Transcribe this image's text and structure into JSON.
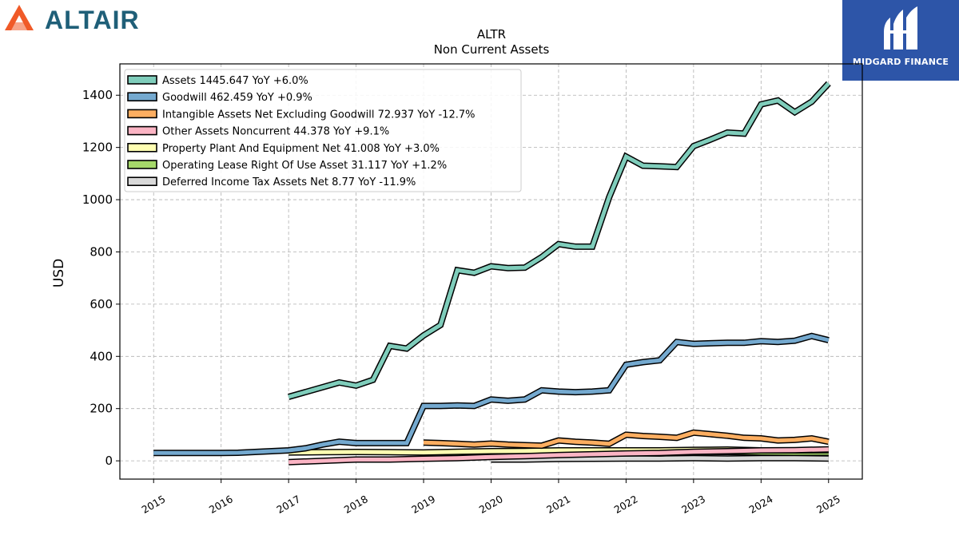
{
  "branding": {
    "left_logo_text": "ALTAIR",
    "right_logo_text": "MIDGARD FINANCE"
  },
  "chart_data": {
    "type": "line",
    "title": "ALTR",
    "subtitle": "Non Current  Assets",
    "ylabel": "USD",
    "xlabel": "",
    "xlim": [
      2014.5,
      2025.5
    ],
    "ylim": [
      -70,
      1520
    ],
    "x_ticks": [
      "2015",
      "2016",
      "2017",
      "2018",
      "2019",
      "2020",
      "2021",
      "2022",
      "2023",
      "2024",
      "2025"
    ],
    "y_ticks": [
      0,
      200,
      400,
      600,
      800,
      1000,
      1200,
      1400
    ],
    "grid": true,
    "legend_position": "top-left",
    "series": [
      {
        "name": "Assets  1445.647 YoY +6.0%",
        "color": "#7fcdbb",
        "points": [
          [
            2017.0,
            245
          ],
          [
            2017.75,
            300
          ],
          [
            2018.0,
            288
          ],
          [
            2018.25,
            310
          ],
          [
            2018.5,
            440
          ],
          [
            2018.75,
            430
          ],
          [
            2019.0,
            480
          ],
          [
            2019.25,
            520
          ],
          [
            2019.5,
            730
          ],
          [
            2019.75,
            720
          ],
          [
            2020.0,
            745
          ],
          [
            2020.25,
            738
          ],
          [
            2020.5,
            740
          ],
          [
            2020.75,
            780
          ],
          [
            2021.0,
            830
          ],
          [
            2021.25,
            820
          ],
          [
            2021.5,
            820
          ],
          [
            2021.75,
            1010
          ],
          [
            2022.0,
            1165
          ],
          [
            2022.25,
            1130
          ],
          [
            2022.5,
            1128
          ],
          [
            2022.75,
            1125
          ],
          [
            2023.0,
            1205
          ],
          [
            2023.25,
            1230
          ],
          [
            2023.5,
            1257
          ],
          [
            2023.75,
            1253
          ],
          [
            2024.0,
            1365
          ],
          [
            2024.25,
            1380
          ],
          [
            2024.5,
            1335
          ],
          [
            2024.75,
            1375
          ],
          [
            2025.0,
            1445
          ]
        ]
      },
      {
        "name": "Goodwill  462.459 YoY +0.9%",
        "color": "#74a9cf",
        "points": [
          [
            2015.0,
            30
          ],
          [
            2015.25,
            30
          ],
          [
            2015.5,
            30
          ],
          [
            2015.75,
            30
          ],
          [
            2016.0,
            30
          ],
          [
            2016.25,
            31
          ],
          [
            2016.5,
            34
          ],
          [
            2016.75,
            37
          ],
          [
            2017.0,
            40
          ],
          [
            2017.25,
            48
          ],
          [
            2017.5,
            62
          ],
          [
            2017.75,
            73
          ],
          [
            2018.0,
            68
          ],
          [
            2018.25,
            68
          ],
          [
            2018.5,
            68
          ],
          [
            2018.75,
            68
          ],
          [
            2019.0,
            210
          ],
          [
            2019.25,
            210
          ],
          [
            2019.5,
            212
          ],
          [
            2019.75,
            210
          ],
          [
            2020.0,
            235
          ],
          [
            2020.25,
            230
          ],
          [
            2020.5,
            235
          ],
          [
            2020.75,
            270
          ],
          [
            2021.0,
            265
          ],
          [
            2021.25,
            263
          ],
          [
            2021.5,
            265
          ],
          [
            2021.75,
            270
          ],
          [
            2022.0,
            368
          ],
          [
            2022.25,
            378
          ],
          [
            2022.5,
            385
          ],
          [
            2022.75,
            455
          ],
          [
            2023.0,
            448
          ],
          [
            2023.25,
            450
          ],
          [
            2023.5,
            452
          ],
          [
            2023.75,
            452
          ],
          [
            2024.0,
            458
          ],
          [
            2024.25,
            455
          ],
          [
            2024.5,
            460
          ],
          [
            2024.75,
            478
          ],
          [
            2025.0,
            462
          ]
        ]
      },
      {
        "name": "Intangible Assets Net Excluding Goodwill  72.937 YoY -12.7%",
        "color": "#fdae61",
        "points": [
          [
            2019.0,
            70
          ],
          [
            2019.25,
            68
          ],
          [
            2019.5,
            65
          ],
          [
            2019.75,
            62
          ],
          [
            2020.0,
            66
          ],
          [
            2020.25,
            62
          ],
          [
            2020.5,
            60
          ],
          [
            2020.75,
            58
          ],
          [
            2021.0,
            78
          ],
          [
            2021.25,
            73
          ],
          [
            2021.5,
            70
          ],
          [
            2021.75,
            65
          ],
          [
            2022.0,
            100
          ],
          [
            2022.25,
            95
          ],
          [
            2022.5,
            92
          ],
          [
            2022.75,
            88
          ],
          [
            2023.0,
            108
          ],
          [
            2023.25,
            102
          ],
          [
            2023.5,
            96
          ],
          [
            2023.75,
            88
          ],
          [
            2024.0,
            86
          ],
          [
            2024.25,
            78
          ],
          [
            2024.5,
            80
          ],
          [
            2024.75,
            86
          ],
          [
            2025.0,
            73
          ]
        ]
      },
      {
        "name": "Other Assets Noncurrent  44.378 YoY +9.1%",
        "color": "#fbb4c4",
        "points": [
          [
            2017.0,
            -5
          ],
          [
            2017.5,
            0
          ],
          [
            2018.0,
            5
          ],
          [
            2018.5,
            5
          ],
          [
            2019.0,
            8
          ],
          [
            2019.5,
            10
          ],
          [
            2020.0,
            15
          ],
          [
            2020.5,
            18
          ],
          [
            2021.0,
            22
          ],
          [
            2021.5,
            25
          ],
          [
            2022.0,
            28
          ],
          [
            2022.5,
            30
          ],
          [
            2023.0,
            35
          ],
          [
            2023.5,
            37
          ],
          [
            2024.0,
            40
          ],
          [
            2024.5,
            41
          ],
          [
            2025.0,
            44
          ]
        ]
      },
      {
        "name": "Property Plant And Equipment Net  41.008 YoY +3.0%",
        "color": "#ffffb2",
        "points": [
          [
            2017.0,
            32
          ],
          [
            2017.5,
            33
          ],
          [
            2018.0,
            34
          ],
          [
            2018.5,
            33
          ],
          [
            2019.0,
            32
          ],
          [
            2019.5,
            35
          ],
          [
            2020.0,
            37
          ],
          [
            2020.5,
            38
          ],
          [
            2021.0,
            40
          ],
          [
            2021.5,
            40
          ],
          [
            2022.0,
            40
          ],
          [
            2022.5,
            40
          ],
          [
            2023.0,
            42
          ],
          [
            2023.5,
            43
          ],
          [
            2024.0,
            40
          ],
          [
            2024.5,
            40
          ],
          [
            2025.0,
            41
          ]
        ]
      },
      {
        "name": "Operating Lease Right Of Use Asset  31.117 YoY +1.2%",
        "color": "#a6d96a",
        "points": [
          [
            2019.25,
            30
          ],
          [
            2019.5,
            29
          ],
          [
            2020.0,
            28
          ],
          [
            2020.5,
            27
          ],
          [
            2021.0,
            33
          ],
          [
            2021.5,
            32
          ],
          [
            2022.0,
            30
          ],
          [
            2022.5,
            28
          ],
          [
            2023.0,
            35
          ],
          [
            2023.5,
            34
          ],
          [
            2024.0,
            32
          ],
          [
            2024.5,
            31
          ],
          [
            2025.0,
            31
          ]
        ]
      },
      {
        "name": "Deferred Income Tax Assets Net  8.77 YoY -11.9%",
        "color": "#d9d9d9",
        "points": [
          [
            2020.0,
            5
          ],
          [
            2020.5,
            5
          ],
          [
            2021.0,
            7
          ],
          [
            2021.5,
            8
          ],
          [
            2022.0,
            9
          ],
          [
            2022.5,
            9
          ],
          [
            2023.0,
            10
          ],
          [
            2023.5,
            9
          ],
          [
            2024.0,
            10
          ],
          [
            2024.5,
            10
          ],
          [
            2025.0,
            9
          ]
        ]
      }
    ]
  }
}
